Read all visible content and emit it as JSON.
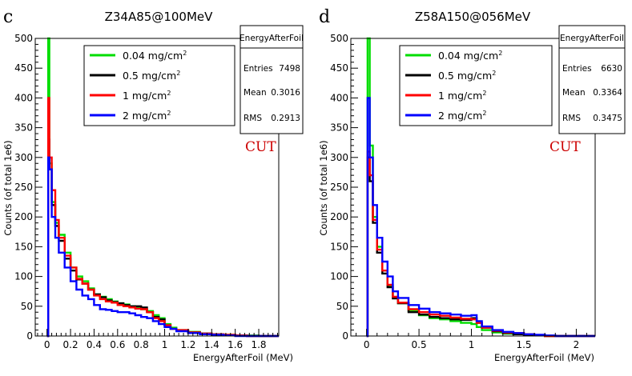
{
  "chart_data": [
    {
      "type": "line",
      "panel_label": "c",
      "title": "Z34A85@100MeV",
      "xlabel": "EnergyAfterFoil (MeV)",
      "ylabel": "Counts (of total 1e6)",
      "xlim": [
        -0.1,
        1.97
      ],
      "ylim": [
        0,
        500
      ],
      "xticks": [
        0,
        0.2,
        0.4,
        0.6,
        0.8,
        1,
        1.2,
        1.4,
        1.6,
        1.8
      ],
      "xtick_labels": [
        "0",
        "0.2",
        "0.4",
        "0.6",
        "0.8",
        "1",
        "1.2",
        "1.4",
        "1.6",
        "1.8"
      ],
      "yticks": [
        0,
        50,
        100,
        150,
        200,
        250,
        300,
        350,
        400,
        450,
        500
      ],
      "ytick_labels": [
        "0",
        "50",
        "100",
        "150",
        "200",
        "250",
        "300",
        "350",
        "400",
        "450",
        "500"
      ],
      "annotation": "CUT",
      "stats": {
        "name": "EnergyAfterFoil",
        "rows": [
          {
            "label": "Entries",
            "value": "7498"
          },
          {
            "label": "Mean",
            "value": "0.3016"
          },
          {
            "label": "RMS",
            "value": "0.2913"
          }
        ]
      },
      "legend": [
        {
          "label": "0.04 mg/cm",
          "sup": "2",
          "color": "#00dd00"
        },
        {
          "label": "0.5 mg/cm",
          "sup": "2",
          "color": "#000000"
        },
        {
          "label": "1 mg/cm",
          "sup": "2",
          "color": "#ff0000"
        },
        {
          "label": "2 mg/cm",
          "sup": "2",
          "color": "#0000ff"
        }
      ],
      "series": [
        {
          "name": "0.04 mg/cm2",
          "color": "#00dd00",
          "x": [
            0,
            0.01,
            0.02,
            0.04,
            0.07,
            0.1,
            0.15,
            0.2,
            0.25,
            0.3,
            0.35,
            0.4,
            0.45,
            0.5,
            0.55,
            0.6,
            0.65,
            0.7,
            0.75,
            0.8,
            0.85,
            0.9,
            0.95,
            1.0,
            1.05,
            1.1,
            1.2,
            1.3,
            1.4,
            1.5,
            1.6,
            1.7,
            1.8,
            1.9
          ],
          "y": [
            0,
            500,
            290,
            225,
            190,
            170,
            140,
            115,
            100,
            92,
            80,
            70,
            66,
            62,
            58,
            55,
            53,
            50,
            48,
            45,
            42,
            35,
            30,
            20,
            14,
            10,
            7,
            4,
            3,
            2,
            1,
            1,
            0,
            0
          ]
        },
        {
          "name": "0.5 mg/cm2",
          "color": "#000000",
          "x": [
            0,
            0.01,
            0.02,
            0.04,
            0.07,
            0.1,
            0.15,
            0.2,
            0.25,
            0.3,
            0.35,
            0.4,
            0.45,
            0.5,
            0.55,
            0.6,
            0.65,
            0.7,
            0.75,
            0.8,
            0.85,
            0.9,
            0.95,
            1.0,
            1.05,
            1.1,
            1.2,
            1.3,
            1.4,
            1.5,
            1.6,
            1.7,
            1.8,
            1.9
          ],
          "y": [
            0,
            330,
            280,
            220,
            185,
            160,
            130,
            110,
            95,
            88,
            78,
            70,
            65,
            60,
            57,
            55,
            52,
            50,
            50,
            48,
            40,
            32,
            28,
            18,
            12,
            9,
            6,
            4,
            2,
            1,
            1,
            0,
            0,
            0
          ]
        },
        {
          "name": "1 mg/cm2",
          "color": "#ff0000",
          "x": [
            0,
            0.01,
            0.02,
            0.04,
            0.07,
            0.1,
            0.15,
            0.2,
            0.25,
            0.3,
            0.35,
            0.4,
            0.45,
            0.5,
            0.55,
            0.6,
            0.65,
            0.7,
            0.75,
            0.8,
            0.85,
            0.9,
            0.95,
            1.0,
            1.05,
            1.1,
            1.2,
            1.3,
            1.4,
            1.5,
            1.6,
            1.7,
            1.8,
            1.9
          ],
          "y": [
            0,
            400,
            300,
            245,
            195,
            165,
            135,
            115,
            96,
            88,
            78,
            68,
            62,
            58,
            56,
            52,
            50,
            48,
            46,
            45,
            40,
            30,
            25,
            18,
            12,
            10,
            6,
            4,
            3,
            2,
            1,
            0,
            0,
            0
          ]
        },
        {
          "name": "2 mg/cm2",
          "color": "#0000ff",
          "x": [
            0,
            0.01,
            0.02,
            0.04,
            0.07,
            0.1,
            0.15,
            0.2,
            0.25,
            0.3,
            0.35,
            0.4,
            0.45,
            0.5,
            0.55,
            0.6,
            0.65,
            0.7,
            0.75,
            0.8,
            0.85,
            0.9,
            0.95,
            1.0,
            1.05,
            1.1,
            1.2,
            1.3,
            1.4,
            1.5,
            1.6,
            1.7,
            1.8,
            1.9
          ],
          "y": [
            0,
            300,
            280,
            200,
            165,
            140,
            115,
            92,
            78,
            68,
            62,
            52,
            45,
            44,
            42,
            40,
            40,
            38,
            35,
            32,
            30,
            25,
            20,
            15,
            12,
            8,
            5,
            3,
            2,
            1,
            0,
            0,
            0,
            0
          ]
        }
      ]
    },
    {
      "type": "line",
      "panel_label": "d",
      "title": "Z58A150@056MeV",
      "xlabel": "EnergyAfterFoil (MeV)",
      "ylabel": "Counts (of total 1e6)",
      "xlim": [
        -0.15,
        2.18
      ],
      "ylim": [
        0,
        500
      ],
      "xticks": [
        0,
        0.5,
        1,
        1.5,
        2
      ],
      "xtick_labels": [
        "0",
        "0.5",
        "1",
        "1.5",
        "2"
      ],
      "yticks": [
        0,
        50,
        100,
        150,
        200,
        250,
        300,
        350,
        400,
        450,
        500
      ],
      "ytick_labels": [
        "0",
        "50",
        "100",
        "150",
        "200",
        "250",
        "300",
        "350",
        "400",
        "450",
        "500"
      ],
      "annotation": "CUT",
      "stats": {
        "name": "EnergyAfterFoil",
        "rows": [
          {
            "label": "Entries",
            "value": "6630"
          },
          {
            "label": "Mean",
            "value": "0.3364"
          },
          {
            "label": "RMS",
            "value": "0.3475"
          }
        ]
      },
      "legend": [
        {
          "label": "0.04 mg/cm",
          "sup": "2",
          "color": "#00dd00"
        },
        {
          "label": "0.5 mg/cm",
          "sup": "2",
          "color": "#000000"
        },
        {
          "label": "1 mg/cm",
          "sup": "2",
          "color": "#ff0000"
        },
        {
          "label": "2 mg/cm",
          "sup": "2",
          "color": "#0000ff"
        }
      ],
      "series": [
        {
          "name": "0.04 mg/cm2",
          "color": "#00dd00",
          "x": [
            0,
            0.01,
            0.03,
            0.06,
            0.1,
            0.15,
            0.2,
            0.25,
            0.3,
            0.4,
            0.5,
            0.6,
            0.7,
            0.8,
            0.9,
            1.0,
            1.05,
            1.1,
            1.2,
            1.3,
            1.4,
            1.5,
            1.6,
            1.7,
            1.8,
            1.9,
            2.0,
            2.1
          ],
          "y": [
            0,
            500,
            320,
            200,
            150,
            110,
            85,
            65,
            55,
            42,
            35,
            30,
            28,
            25,
            22,
            20,
            15,
            10,
            6,
            4,
            3,
            2,
            1,
            0,
            0,
            0,
            0,
            0
          ]
        },
        {
          "name": "0.5 mg/cm2",
          "color": "#000000",
          "x": [
            0,
            0.01,
            0.03,
            0.06,
            0.1,
            0.15,
            0.2,
            0.25,
            0.3,
            0.4,
            0.5,
            0.6,
            0.7,
            0.8,
            0.9,
            1.0,
            1.05,
            1.1,
            1.2,
            1.3,
            1.4,
            1.5,
            1.6,
            1.7,
            1.8,
            1.9,
            2.0,
            2.1
          ],
          "y": [
            0,
            300,
            260,
            190,
            140,
            105,
            82,
            63,
            55,
            40,
            36,
            32,
            30,
            28,
            27,
            30,
            22,
            14,
            8,
            5,
            3,
            2,
            1,
            0,
            0,
            0,
            0,
            0
          ]
        },
        {
          "name": "1 mg/cm2",
          "color": "#ff0000",
          "x": [
            0,
            0.01,
            0.03,
            0.06,
            0.1,
            0.15,
            0.2,
            0.25,
            0.3,
            0.4,
            0.5,
            0.6,
            0.7,
            0.8,
            0.9,
            1.0,
            1.05,
            1.1,
            1.2,
            1.3,
            1.4,
            1.5,
            1.6,
            1.7,
            1.8,
            1.9,
            2.0,
            2.1
          ],
          "y": [
            0,
            310,
            270,
            195,
            145,
            110,
            86,
            66,
            56,
            45,
            40,
            36,
            34,
            31,
            29,
            28,
            22,
            14,
            9,
            6,
            5,
            3,
            1,
            0,
            0,
            0,
            0,
            0
          ]
        },
        {
          "name": "2 mg/cm2",
          "color": "#0000ff",
          "x": [
            0,
            0.01,
            0.03,
            0.06,
            0.1,
            0.15,
            0.2,
            0.25,
            0.3,
            0.4,
            0.5,
            0.6,
            0.7,
            0.8,
            0.9,
            1.0,
            1.05,
            1.1,
            1.2,
            1.3,
            1.4,
            1.5,
            1.6,
            1.7,
            1.8,
            1.9,
            2.0,
            2.1
          ],
          "y": [
            0,
            400,
            300,
            220,
            165,
            125,
            100,
            75,
            64,
            52,
            46,
            40,
            38,
            36,
            34,
            35,
            25,
            16,
            10,
            7,
            5,
            3,
            2,
            1,
            0,
            0,
            0,
            0
          ]
        }
      ]
    }
  ]
}
